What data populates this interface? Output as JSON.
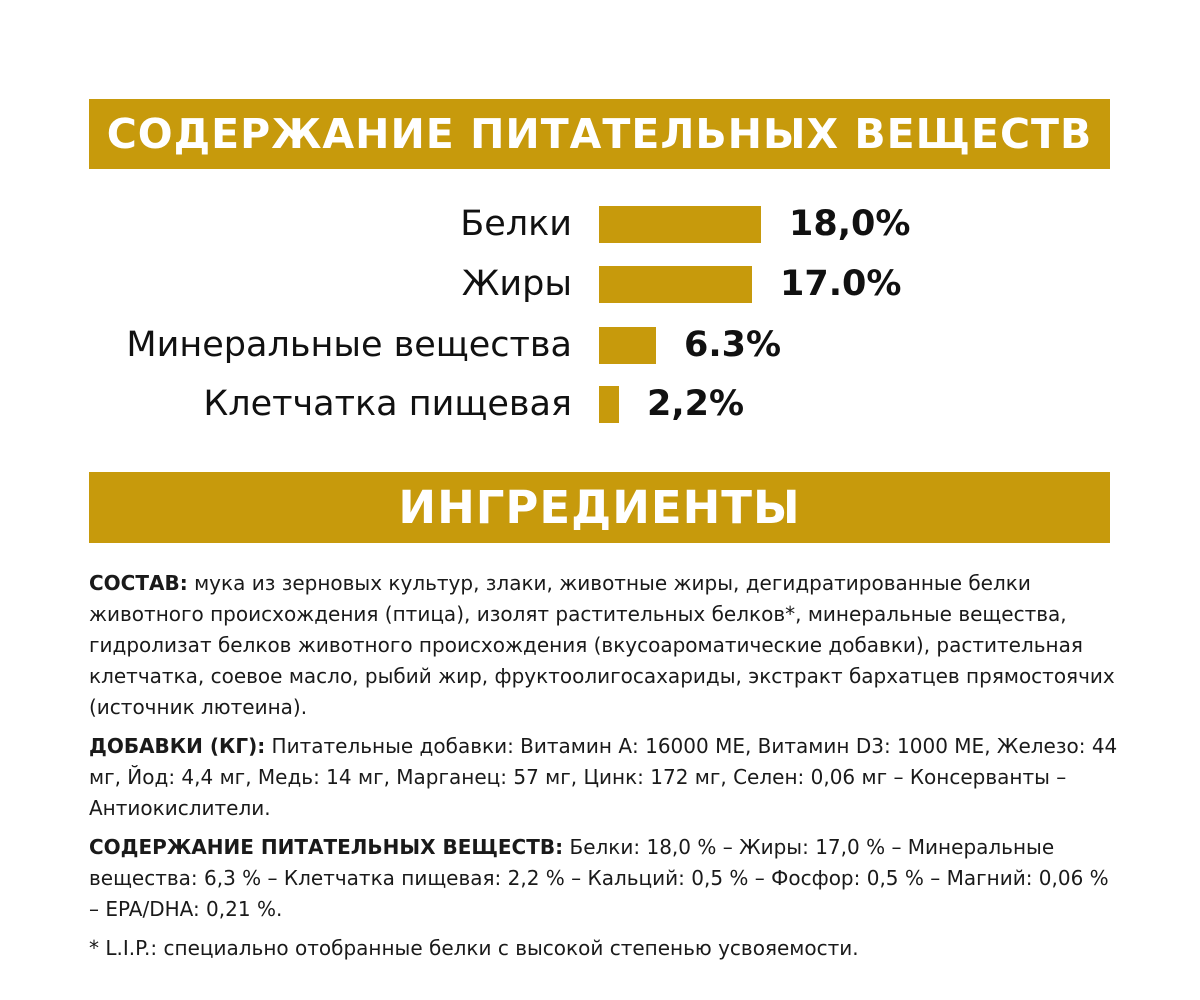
{
  "accent_color": "#c79a0c",
  "sections": {
    "nutrients_title": "СОДЕРЖАНИЕ ПИТАТЕЛЬНЫХ ВЕЩЕСТВ",
    "ingredients_title": "ИНГРЕДИЕНТЫ"
  },
  "chart_data": {
    "type": "bar",
    "orientation": "horizontal",
    "categories": [
      "Белки",
      "Жиры",
      "Минеральные вещества",
      "Клетчатка пищевая"
    ],
    "values": [
      18.0,
      17.0,
      6.3,
      2.2
    ],
    "value_labels": [
      "18,0%",
      "17.0%",
      "6.3%",
      "2,2%"
    ],
    "unit": "%",
    "grid": false,
    "legend": "none"
  },
  "ingredients": {
    "composition_label": "СОСТАВ:",
    "composition_text": " мука из зерновых культур, злаки, животные жиры, дегидратированные белки животного происхождения (птица), изолят растительных белков*, минеральные вещества, гидролизат белков животного происхождения (вкусоароматические добавки), растительная клетчатка, соевое масло, рыбий жир, фруктоолигосахариды, экстракт бархатцев прямостоячих (источник лютеина).",
    "additives_label": "ДОБАВКИ (КГ):",
    "additives_text": " Питательные добавки: Витамин А: 16000 МЕ, Витамин D3: 1000 МЕ, Железо: 44 мг, Йод: 4,4 мг, Медь: 14 мг, Марганец: 57 мг, Цинк: 172 мг, Селен: 0,06 мг – Консерванты – Антиокислители.",
    "nutrients_label": "СОДЕРЖАНИЕ ПИТАТЕЛЬНЫХ ВЕЩЕСТВ:",
    "nutrients_text": " Белки: 18,0 % – Жиры: 17,0 % – Минеральные вещества: 6,3 % – Клетчатка пищевая: 2,2 % – Кальций: 0,5 % – Фосфор: 0,5 % – Магний: 0,06 % – EPA/DHA: 0,21 %.",
    "footnote": "* L.I.P.: специально отобранные белки с высокой степенью усвояемости."
  }
}
